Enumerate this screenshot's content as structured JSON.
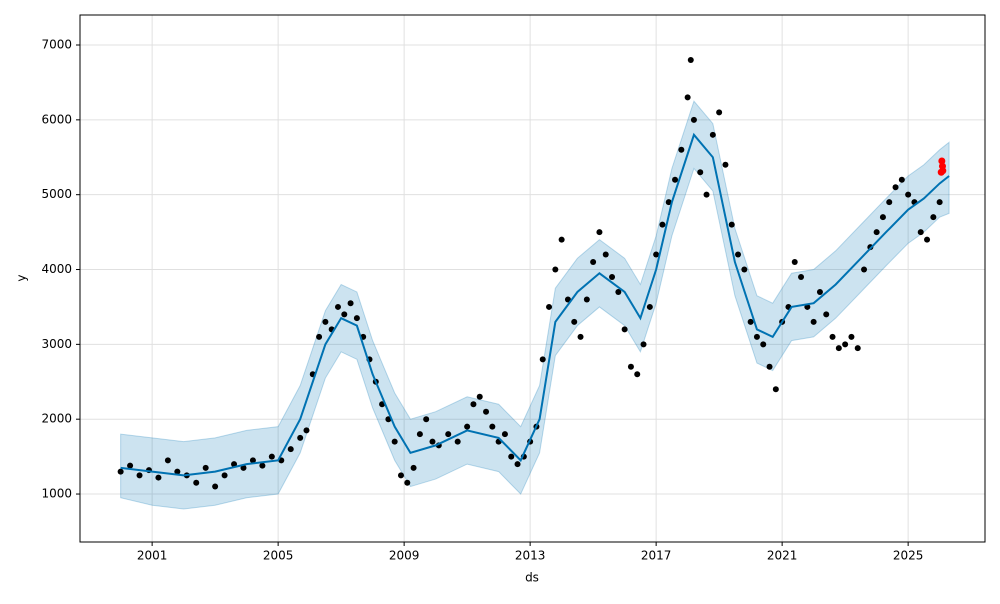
{
  "chart_data": {
    "type": "forecast",
    "xlabel": "ds",
    "ylabel": "y",
    "xlim": [
      1998.71,
      2027.44
    ],
    "xticks": [
      2001,
      2005,
      2009,
      2013,
      2017,
      2021,
      2025
    ],
    "ylim": [
      359,
      7401
    ],
    "yticks": [
      1000,
      2000,
      3000,
      4000,
      5000,
      6000,
      7000
    ],
    "grid": true,
    "observed": {
      "color": "#000000",
      "x": [
        2000.0,
        2000.3,
        2000.6,
        2000.9,
        2001.2,
        2001.5,
        2001.8,
        2002.1,
        2002.4,
        2002.7,
        2003.0,
        2003.3,
        2003.6,
        2003.9,
        2004.2,
        2004.5,
        2004.8,
        2005.1,
        2005.4,
        2005.7,
        2005.9,
        2006.1,
        2006.3,
        2006.5,
        2006.7,
        2006.9,
        2007.1,
        2007.3,
        2007.5,
        2007.7,
        2007.9,
        2008.1,
        2008.3,
        2008.5,
        2008.7,
        2008.9,
        2009.1,
        2009.3,
        2009.5,
        2009.7,
        2009.9,
        2010.1,
        2010.4,
        2010.7,
        2011.0,
        2011.2,
        2011.4,
        2011.6,
        2011.8,
        2012.0,
        2012.2,
        2012.4,
        2012.6,
        2012.8,
        2013.0,
        2013.2,
        2013.4,
        2013.6,
        2013.8,
        2014.0,
        2014.2,
        2014.4,
        2014.6,
        2014.8,
        2015.0,
        2015.2,
        2015.4,
        2015.6,
        2015.8,
        2016.0,
        2016.2,
        2016.4,
        2016.6,
        2016.8,
        2017.0,
        2017.2,
        2017.4,
        2017.6,
        2017.8,
        2018.0,
        2018.1,
        2018.2,
        2018.4,
        2018.6,
        2018.8,
        2019.0,
        2019.2,
        2019.4,
        2019.6,
        2019.8,
        2020.0,
        2020.2,
        2020.4,
        2020.6,
        2020.8,
        2021.0,
        2021.2,
        2021.4,
        2021.6,
        2021.8,
        2022.0,
        2022.2,
        2022.4,
        2022.6,
        2022.8,
        2023.0,
        2023.2,
        2023.4,
        2023.6,
        2023.8,
        2024.0,
        2024.2,
        2024.4,
        2024.6,
        2024.8,
        2025.0,
        2025.2,
        2025.4,
        2025.6,
        2025.8,
        2026.0
      ],
      "values": [
        1300,
        1380,
        1250,
        1320,
        1220,
        1450,
        1300,
        1250,
        1150,
        1350,
        1100,
        1250,
        1400,
        1350,
        1450,
        1380,
        1500,
        1450,
        1600,
        1750,
        1850,
        2600,
        3100,
        3300,
        3200,
        3500,
        3400,
        3550,
        3350,
        3100,
        2800,
        2500,
        2200,
        2000,
        1700,
        1250,
        1150,
        1350,
        1800,
        2000,
        1700,
        1650,
        1800,
        1700,
        1900,
        2200,
        2300,
        2100,
        1900,
        1700,
        1800,
        1500,
        1400,
        1500,
        1700,
        1900,
        2800,
        3500,
        4000,
        4400,
        3600,
        3300,
        3100,
        3600,
        4100,
        4500,
        4200,
        3900,
        3700,
        3200,
        2700,
        2600,
        3000,
        3500,
        4200,
        4600,
        4900,
        5200,
        5600,
        6300,
        6800,
        6000,
        5300,
        5000,
        5800,
        6100,
        5400,
        4600,
        4200,
        4000,
        3300,
        3100,
        3000,
        2700,
        2400,
        3300,
        3500,
        4100,
        3900,
        3500,
        3300,
        3700,
        3400,
        3100,
        2950,
        3000,
        3100,
        2950,
        4000,
        4300,
        4500,
        4700,
        4900,
        5100,
        5200,
        5000,
        4900,
        4500,
        4400,
        4700,
        4900
      ]
    },
    "forecast": {
      "color": "#0072B2",
      "x": [
        2000.0,
        2001,
        2002,
        2003,
        2004,
        2005,
        2005.7,
        2006.5,
        2007.0,
        2007.5,
        2008.0,
        2008.7,
        2009.2,
        2010,
        2011,
        2012,
        2012.7,
        2013.3,
        2013.8,
        2014.5,
        2015.2,
        2016.0,
        2016.5,
        2017.0,
        2017.5,
        2018.2,
        2018.8,
        2019.5,
        2020.2,
        2020.7,
        2021.3,
        2022.0,
        2022.7,
        2023.5,
        2024.3,
        2025.0,
        2025.5,
        2026.0,
        2026.3
      ],
      "values": [
        1350,
        1300,
        1250,
        1300,
        1400,
        1450,
        2000,
        3000,
        3350,
        3250,
        2600,
        1900,
        1550,
        1650,
        1850,
        1750,
        1450,
        2000,
        3300,
        3700,
        3950,
        3700,
        3350,
        4000,
        4900,
        5800,
        5500,
        4100,
        3200,
        3100,
        3500,
        3550,
        3800,
        4150,
        4500,
        4800,
        4950,
        5150,
        5250
      ],
      "lower": [
        950,
        850,
        800,
        850,
        950,
        1000,
        1550,
        2550,
        2900,
        2800,
        2150,
        1450,
        1100,
        1200,
        1400,
        1300,
        1000,
        1550,
        2850,
        3250,
        3500,
        3250,
        2900,
        3550,
        4450,
        5350,
        5050,
        3650,
        2750,
        2650,
        3050,
        3100,
        3350,
        3700,
        4050,
        4350,
        4500,
        4700,
        4750
      ],
      "upper": [
        1800,
        1750,
        1700,
        1750,
        1850,
        1900,
        2450,
        3450,
        3800,
        3700,
        3050,
        2350,
        2000,
        2100,
        2300,
        2200,
        1900,
        2450,
        3750,
        4150,
        4400,
        4150,
        3800,
        4450,
        5350,
        6250,
        5950,
        4550,
        3650,
        3550,
        3950,
        4000,
        4250,
        4600,
        4950,
        5250,
        5400,
        5600,
        5700
      ]
    },
    "recent": {
      "color": "#ff0000",
      "x": [
        2026.05,
        2026.07,
        2026.09,
        2026.1
      ],
      "values": [
        5300,
        5450,
        5380,
        5320
      ]
    }
  }
}
